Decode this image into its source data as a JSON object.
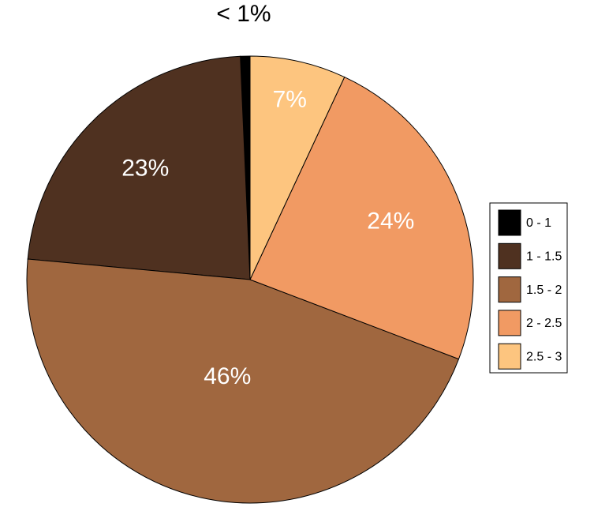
{
  "chart_data": {
    "type": "pie",
    "categories": [
      "0 - 1",
      "1 - 1.5",
      "1.5 - 2",
      "2 - 2.5",
      "2.5 - 3"
    ],
    "values": [
      0.7,
      23,
      46,
      24,
      7
    ],
    "value_labels": [
      "< 1%",
      "23%",
      "46%",
      "24%",
      "7%"
    ],
    "colors": [
      "#000000",
      "#4f3120",
      "#a0673f",
      "#f19a63",
      "#fdc57f"
    ],
    "legend": "right"
  }
}
